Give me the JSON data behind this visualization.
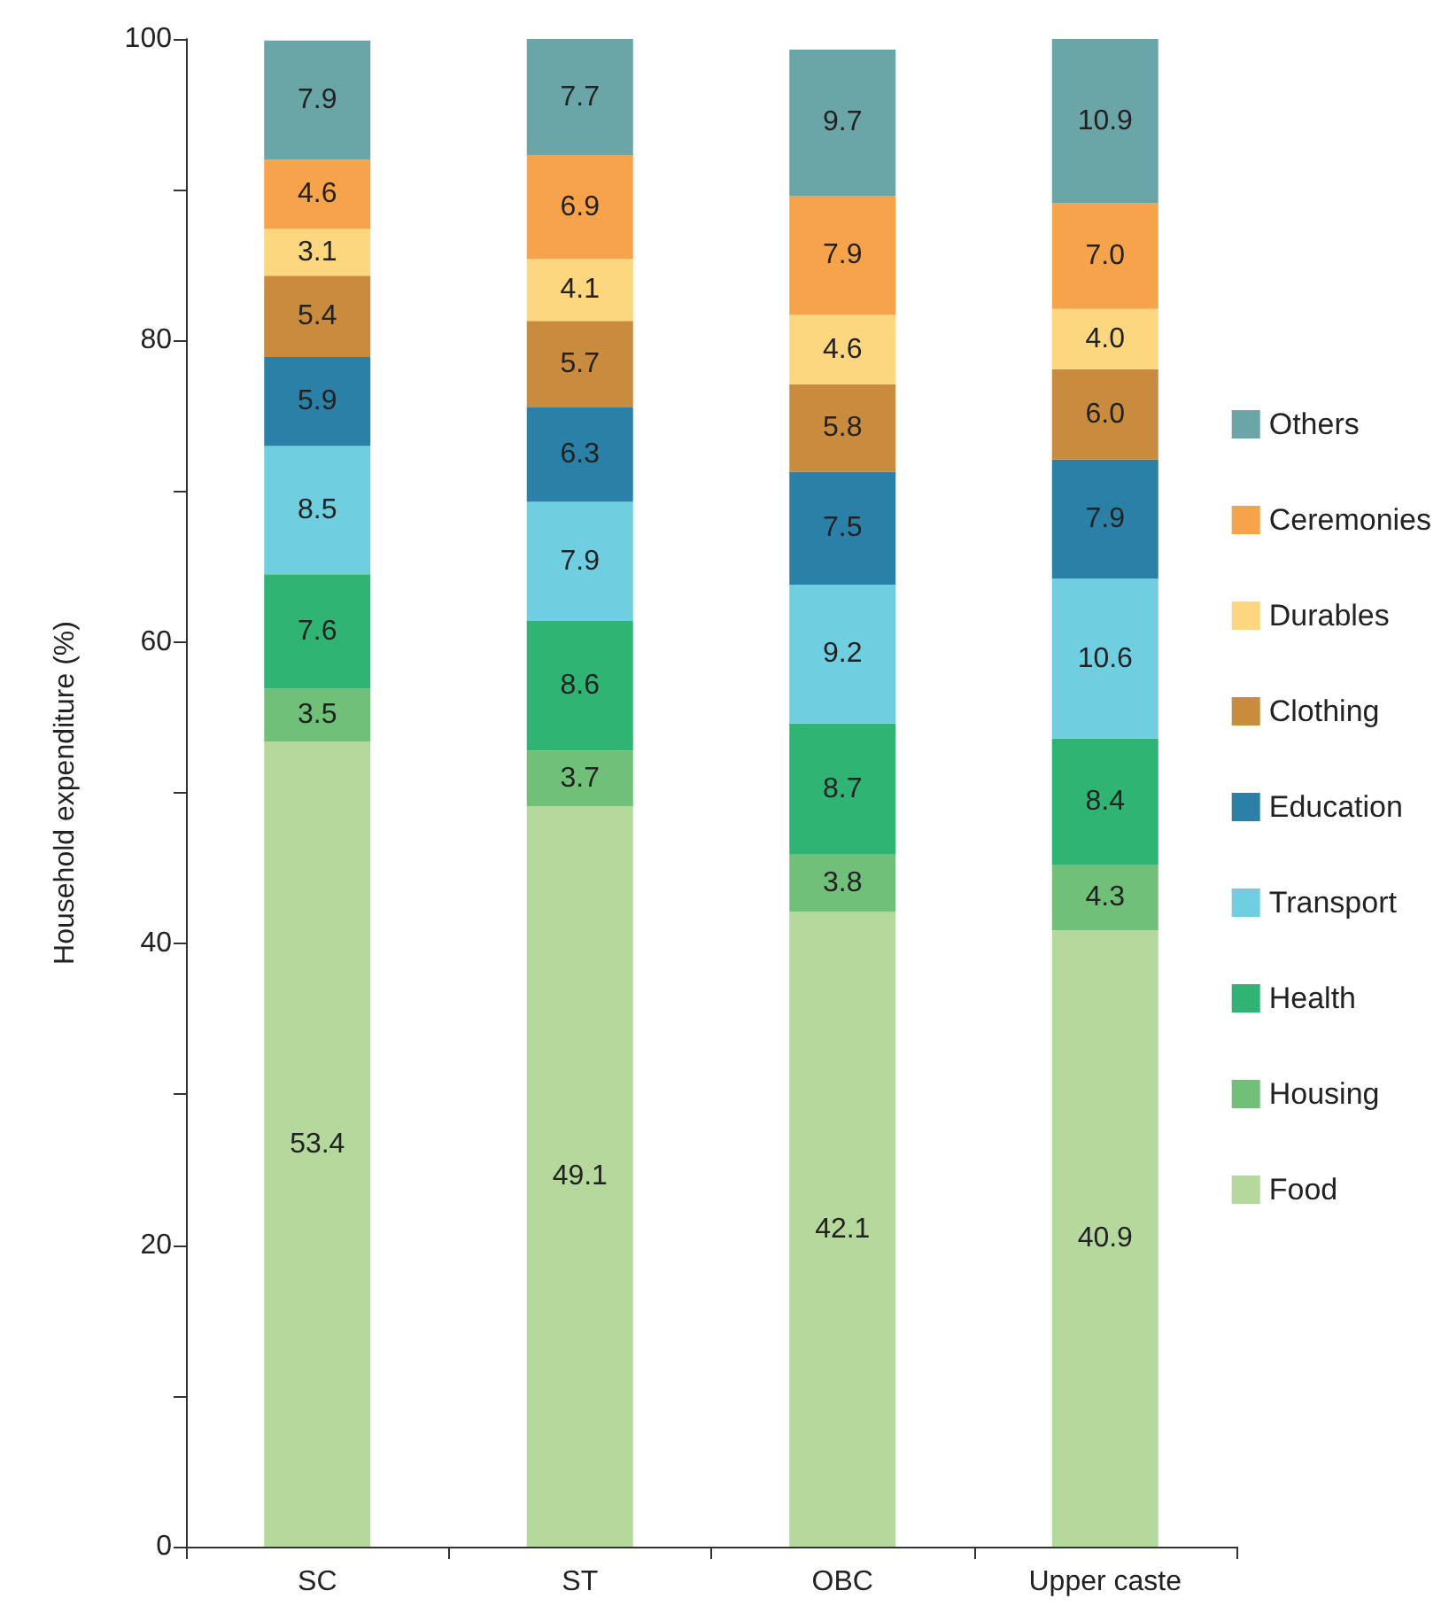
{
  "chart_data": {
    "type": "bar",
    "stacked": true,
    "ylabel": "Household expenditure (%)",
    "categories": [
      "SC",
      "ST",
      "OBC",
      "Upper caste"
    ],
    "ylim": [
      0,
      100
    ],
    "yticks": [
      0,
      {
        "value": 10,
        "label": null
      },
      20,
      {
        "value": 30,
        "label": null
      },
      40,
      {
        "value": 50,
        "label": null
      },
      60,
      {
        "value": 70,
        "label": null
      },
      80,
      {
        "value": 90,
        "label": null
      },
      100
    ],
    "grid": false,
    "legend": "right",
    "series": [
      {
        "name": "Food",
        "color": "#b5d99c",
        "values": [
          53.4,
          49.1,
          42.1,
          40.9
        ],
        "value_labels": [
          "53.4",
          "49.1",
          "42.1",
          "40.9"
        ]
      },
      {
        "name": "Housing",
        "color": "#71c07a",
        "values": [
          3.5,
          3.7,
          3.8,
          4.3
        ],
        "value_labels": [
          "3.5",
          "3.7",
          "3.8",
          "4.3"
        ]
      },
      {
        "name": "Health",
        "color": "#2fb474",
        "values": [
          7.6,
          8.6,
          8.7,
          8.4
        ],
        "value_labels": [
          "7.6",
          "8.6",
          "8.7",
          "8.4"
        ]
      },
      {
        "name": "Transport",
        "color": "#6fcfe0",
        "values": [
          8.5,
          7.9,
          9.2,
          10.6
        ],
        "value_labels": [
          "8.5",
          "7.9",
          "9.2",
          "10.6"
        ]
      },
      {
        "name": "Education",
        "color": "#2b80a8",
        "values": [
          5.9,
          6.3,
          7.5,
          7.9
        ],
        "value_labels": [
          "5.9",
          "6.3",
          "7.5",
          "7.9"
        ]
      },
      {
        "name": "Clothing",
        "color": "#c98b3d",
        "values": [
          5.4,
          5.7,
          5.8,
          6.0
        ],
        "value_labels": [
          "5.4",
          "5.7",
          "5.8",
          "6.0"
        ]
      },
      {
        "name": "Durables",
        "color": "#fdd680",
        "values": [
          3.1,
          4.1,
          4.6,
          4.0
        ],
        "value_labels": [
          "3.1",
          "4.1",
          "4.6",
          "4.0"
        ]
      },
      {
        "name": "Ceremonies",
        "color": "#f7a34b",
        "values": [
          4.6,
          6.9,
          7.9,
          7.0
        ],
        "value_labels": [
          "4.6",
          "6.9",
          "7.9",
          "7.0"
        ]
      },
      {
        "name": "Others",
        "color": "#6aa5a8",
        "values": [
          7.9,
          7.7,
          9.7,
          10.9
        ],
        "value_labels": [
          "7.9",
          "7.7",
          "9.7",
          "10.9"
        ]
      }
    ]
  }
}
